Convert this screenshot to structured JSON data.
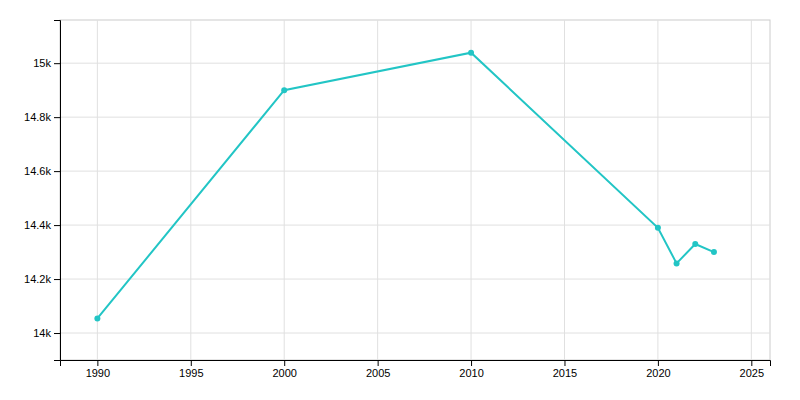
{
  "chart_data": {
    "type": "line",
    "x": [
      1990,
      2000,
      2010,
      2020,
      2021,
      2022,
      2023
    ],
    "values": [
      14054,
      14900,
      15039,
      14390,
      14258,
      14330,
      14300
    ],
    "color": "#22c5c5",
    "marker": "circle",
    "xlim": [
      1988,
      2026
    ],
    "ylim": [
      13900,
      15160
    ],
    "xticks": [
      1990,
      1995,
      2000,
      2005,
      2010,
      2015,
      2020,
      2025
    ],
    "yticks": [
      {
        "value": 14000,
        "label": "14k"
      },
      {
        "value": 14200,
        "label": "14.2k"
      },
      {
        "value": 14400,
        "label": "14.4k"
      },
      {
        "value": 14600,
        "label": "14.6k"
      },
      {
        "value": 14800,
        "label": "14.8k"
      },
      {
        "value": 15000,
        "label": "15k"
      }
    ],
    "grid": true
  }
}
